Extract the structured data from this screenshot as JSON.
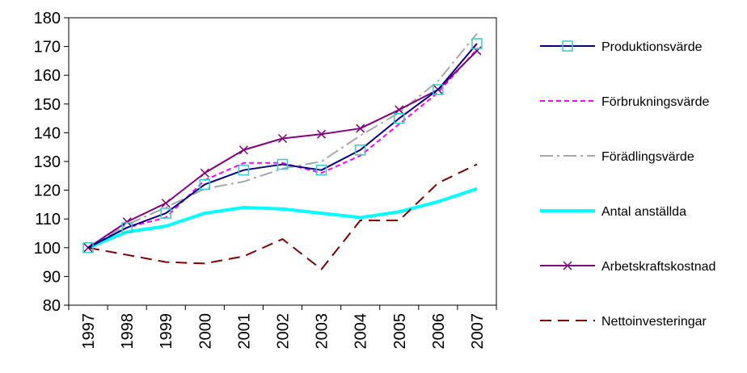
{
  "chart_data": {
    "type": "line",
    "title": "",
    "xlabel": "",
    "ylabel": "",
    "ylim": [
      80,
      180
    ],
    "yticks": [
      80,
      90,
      100,
      110,
      120,
      130,
      140,
      150,
      160,
      170,
      180
    ],
    "categories": [
      "1997",
      "1998",
      "1999",
      "2000",
      "2001",
      "2002",
      "2003",
      "2004",
      "2005",
      "2006",
      "2007"
    ],
    "grid": false,
    "legend_position": "right",
    "series": [
      {
        "name": "Produktionsvärde",
        "color": "#000080",
        "dash": "solid",
        "marker": "square",
        "marker_color": "#33cccc",
        "values": [
          100,
          107,
          112,
          122,
          127,
          129,
          127,
          134,
          145,
          155,
          171
        ]
      },
      {
        "name": "Förbrukningsvärde",
        "color": "#ff00ff",
        "dash": "dashed",
        "marker": "none",
        "values": [
          100,
          107,
          110.5,
          123.5,
          129.5,
          129.5,
          126,
          132,
          143,
          154,
          169
        ]
      },
      {
        "name": "Förädlingsvärde",
        "color": "#a6a6a6",
        "dash": "dash-dot",
        "marker": "none",
        "values": [
          100,
          108,
          114,
          120.5,
          123,
          127.5,
          130,
          139,
          147,
          158,
          174.5
        ]
      },
      {
        "name": "Antal anställda",
        "color": "#00ffff",
        "dash": "solid-thick",
        "marker": "none",
        "values": [
          100,
          105.5,
          107.5,
          112,
          114,
          113.5,
          112,
          110.5,
          112.5,
          116,
          120.5
        ]
      },
      {
        "name": "Arbetskraftskostnad",
        "color": "#800080",
        "dash": "solid",
        "marker": "x",
        "values": [
          100,
          109,
          115.5,
          126,
          134,
          138,
          139.5,
          141.5,
          148,
          155,
          168.5
        ]
      },
      {
        "name": "Nettoinvesteringar",
        "color": "#800000",
        "dash": "long-dash",
        "marker": "none",
        "values": [
          100,
          97.5,
          95,
          94.5,
          97,
          103,
          92.5,
          109.5,
          109.5,
          122.5,
          129
        ]
      }
    ]
  }
}
